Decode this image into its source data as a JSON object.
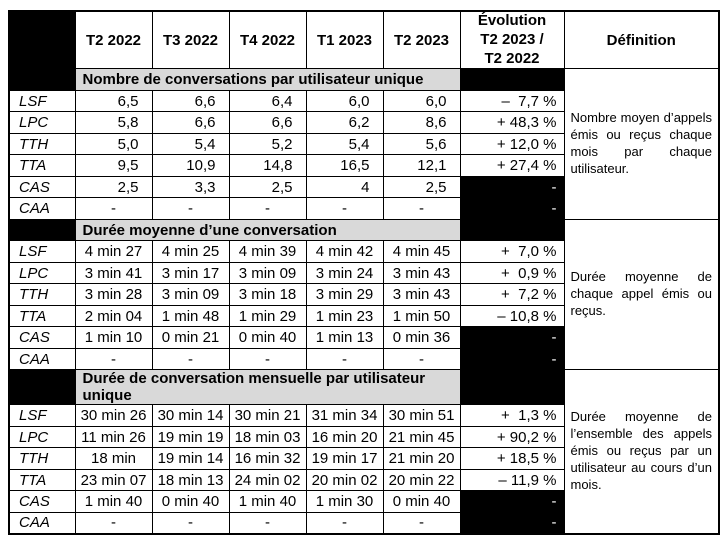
{
  "colors": {
    "dark_cell": "#000000",
    "section_band": "#d9d9d9",
    "border": "#000000",
    "dark_cell_text": "#ffffff"
  },
  "header": {
    "quarters": [
      "T2 2022",
      "T3 2022",
      "T4 2022",
      "T1 2023",
      "T2 2023"
    ],
    "evolution_lines": [
      "Évolution",
      "T2 2023 /",
      "T2 2022"
    ],
    "definition": "Définition"
  },
  "sections": [
    {
      "title": "Nombre de conversations par utilisateur unique",
      "definition": "Nombre moyen d’appels émis ou reçus chaque mois par chaque utilisateur.",
      "value_align": "right",
      "rows": [
        {
          "label": "LSF",
          "values": [
            "6,5",
            "6,6",
            "6,4",
            "6,0",
            "6,0"
          ],
          "evolution": "–  7,7 %",
          "evolution_dark": false
        },
        {
          "label": "LPC",
          "values": [
            "5,8",
            "6,6",
            "6,6",
            "6,2",
            "8,6"
          ],
          "evolution": "+ 48,3 %",
          "evolution_dark": false
        },
        {
          "label": "TTH",
          "values": [
            "5,0",
            "5,4",
            "5,2",
            "5,4",
            "5,6"
          ],
          "evolution": "+ 12,0 %",
          "evolution_dark": false
        },
        {
          "label": "TTA",
          "values": [
            "9,5",
            "10,9",
            "14,8",
            "16,5",
            "12,1"
          ],
          "evolution": "+ 27,4 %",
          "evolution_dark": false
        },
        {
          "label": "CAS",
          "values": [
            "2,5",
            "3,3",
            "2,5",
            "4",
            "2,5"
          ],
          "evolution": "-",
          "evolution_dark": true
        },
        {
          "label": "CAA",
          "values": [
            "-",
            "-",
            "-",
            "-",
            "-"
          ],
          "evolution": "-",
          "evolution_dark": true
        }
      ]
    },
    {
      "title": "Durée moyenne d’une conversation",
      "definition": "Durée moyenne de chaque appel émis ou reçus.",
      "value_align": "center",
      "rows": [
        {
          "label": "LSF",
          "values": [
            "4 min 27",
            "4 min 25",
            "4 min 39",
            "4 min 42",
            "4 min 45"
          ],
          "evolution": "+  7,0 %",
          "evolution_dark": false
        },
        {
          "label": "LPC",
          "values": [
            "3 min 41",
            "3 min 17",
            "3 min 09",
            "3 min 24",
            "3 min 43"
          ],
          "evolution": "+  0,9 %",
          "evolution_dark": false
        },
        {
          "label": "TTH",
          "values": [
            "3 min 28",
            "3 min 09",
            "3 min 18",
            "3 min 29",
            "3 min 43"
          ],
          "evolution": "+  7,2 %",
          "evolution_dark": false
        },
        {
          "label": "TTA",
          "values": [
            "2 min 04",
            "1 min 48",
            "1 min 29",
            "1 min 23",
            "1 min 50"
          ],
          "evolution": "– 10,8 %",
          "evolution_dark": false
        },
        {
          "label": "CAS",
          "values": [
            "1 min 10",
            "0 min 21",
            "0 min 40",
            "1 min 13",
            "0 min 36"
          ],
          "evolution": "-",
          "evolution_dark": true
        },
        {
          "label": "CAA",
          "values": [
            "-",
            "-",
            "-",
            "-",
            "-"
          ],
          "evolution": "-",
          "evolution_dark": true
        }
      ]
    },
    {
      "title": "Durée de conversation mensuelle par utilisateur unique",
      "definition": "Durée moyenne de l’ensemble des appels émis ou reçus par un utilisateur au cours d’un mois.",
      "value_align": "center",
      "rows": [
        {
          "label": "LSF",
          "values": [
            "30 min 26",
            "30 min 14",
            "30 min 21",
            "31 min 34",
            "30 min 51"
          ],
          "evolution": "+  1,3 %",
          "evolution_dark": false
        },
        {
          "label": "LPC",
          "values": [
            "11 min 26",
            "19 min 19",
            "18 min 03",
            "16 min 20",
            "21 min 45"
          ],
          "evolution": "+ 90,2 %",
          "evolution_dark": false
        },
        {
          "label": "TTH",
          "values": [
            "18 min",
            "19 min 14",
            "16 min 32",
            "19 min 17",
            "21 min 20"
          ],
          "evolution": "+ 18,5 %",
          "evolution_dark": false
        },
        {
          "label": "TTA",
          "values": [
            "23 min 07",
            "18 min 13",
            "24 min 02",
            "20 min 02",
            "20 min 22"
          ],
          "evolution": "– 11,9 %",
          "evolution_dark": false
        },
        {
          "label": "CAS",
          "values": [
            "1 min 40",
            "0 min 40",
            "1 min 40",
            "1 min 30",
            "0 min 40"
          ],
          "evolution": "-",
          "evolution_dark": true
        },
        {
          "label": "CAA",
          "values": [
            "-",
            "-",
            "-",
            "-",
            "-"
          ],
          "evolution": "-",
          "evolution_dark": true
        }
      ]
    }
  ]
}
